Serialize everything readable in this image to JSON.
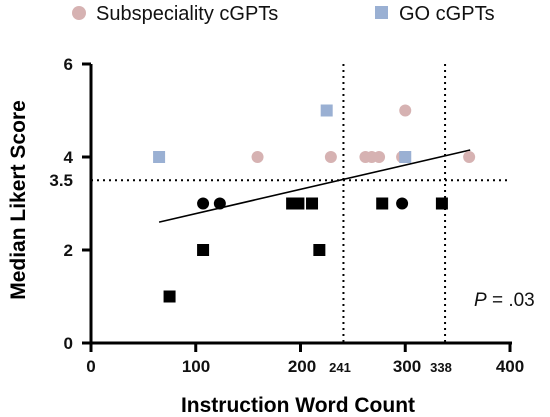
{
  "chart_data": {
    "type": "scatter",
    "xlabel": "Instruction Word Count",
    "ylabel": "Median Likert Score",
    "xlim": [
      0,
      400
    ],
    "ylim": [
      0,
      6
    ],
    "x_ticks": [
      "0",
      "100",
      "200",
      "300",
      "400"
    ],
    "y_ticks": [
      "0",
      "2",
      "4",
      "6"
    ],
    "extra_x_ticks": [
      "241",
      "338"
    ],
    "extra_y_ticks": [
      "3.5"
    ],
    "reference_lines": {
      "vertical": [
        241,
        338
      ],
      "horizontal": [
        3.5
      ]
    },
    "annotation": {
      "p_label": "P",
      "p_value": " = .03"
    },
    "legend": [
      {
        "name": "Subspeciality cGPTs",
        "color": "#d6b2b2",
        "marker": "circle"
      },
      {
        "name": "GO cGPTs",
        "color": "#9ab0d3",
        "marker": "square"
      }
    ],
    "series": [
      {
        "name": "Subspeciality cGPTs",
        "marker": "circle",
        "color": "#d6b2b2",
        "points": [
          [
            159,
            4
          ],
          [
            229,
            4
          ],
          [
            262,
            4
          ],
          [
            268,
            4
          ],
          [
            275,
            4
          ],
          [
            297,
            4
          ],
          [
            300,
            5
          ],
          [
            361,
            4
          ]
        ]
      },
      {
        "name": "GO cGPTs",
        "marker": "square",
        "color": "#9ab0d3",
        "points": [
          [
            65,
            4
          ],
          [
            225,
            5
          ],
          [
            300,
            4
          ]
        ]
      },
      {
        "name": "",
        "marker": "circle",
        "color": "#000000",
        "points": [
          [
            107,
            3
          ],
          [
            123,
            3
          ],
          [
            297,
            3
          ]
        ]
      },
      {
        "name": "",
        "marker": "square",
        "color": "#000000",
        "points": [
          [
            75,
            1
          ],
          [
            107,
            2
          ],
          [
            192,
            3
          ],
          [
            198,
            3
          ],
          [
            211,
            3
          ],
          [
            218,
            2
          ],
          [
            278,
            3
          ],
          [
            335,
            3
          ]
        ]
      }
    ],
    "trend_line": [
      [
        65,
        2.6
      ],
      [
        362,
        4.15
      ]
    ]
  }
}
